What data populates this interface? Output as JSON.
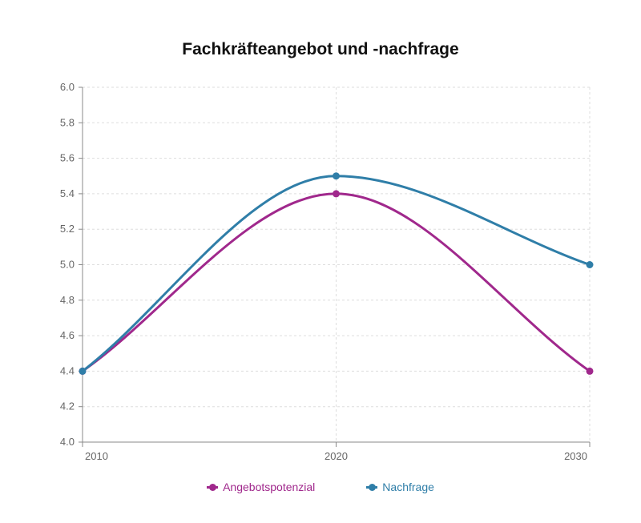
{
  "chart_data": {
    "type": "line",
    "title": "Fachkräfteangebot und -nachfrage",
    "xlabel": "",
    "ylabel": "",
    "x": [
      "2010",
      "2020",
      "2030"
    ],
    "ylim": [
      4.0,
      6.0
    ],
    "yticks": [
      "4.0",
      "4.2",
      "4.4",
      "4.6",
      "4.8",
      "5.0",
      "5.2",
      "5.4",
      "5.6",
      "5.8",
      "6.0"
    ],
    "grid": true,
    "smooth": true,
    "legend_position": "bottom",
    "series": [
      {
        "name": "Angebotspotenzial",
        "values": [
          4.4,
          5.4,
          4.4
        ],
        "color": "#a0288c"
      },
      {
        "name": "Nachfrage",
        "values": [
          4.4,
          5.5,
          5.0
        ],
        "color": "#2f7ea8"
      }
    ]
  }
}
